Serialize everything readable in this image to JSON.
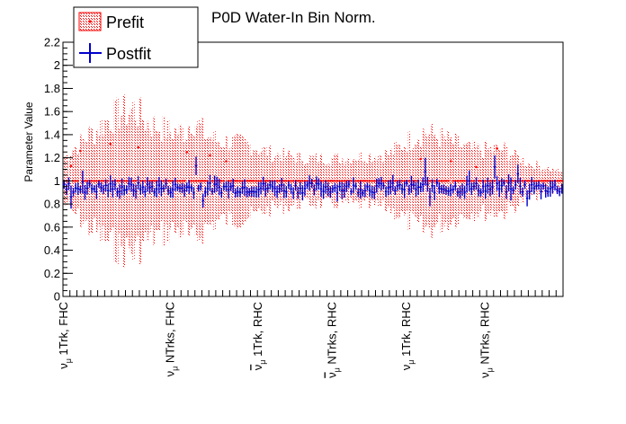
{
  "chart_data": {
    "type": "scatter",
    "title": "P0D Water-In Bin Norm.",
    "ylabel": "Parameter Value",
    "xlabel": "",
    "ylim": [
      0,
      2.2
    ],
    "yticks": [
      "0",
      "0.2",
      "0.4",
      "0.6",
      "0.8",
      "1",
      "1.2",
      "1.4",
      "1.6",
      "1.8",
      "2",
      "2.2"
    ],
    "grid": false,
    "legend_position": "top-left",
    "n_bins": 216,
    "categories": [
      {
        "label": "1Trk, FHC",
        "nu": "ν",
        "sub": "μ",
        "bar": false,
        "start_bin": 0
      },
      {
        "label": "NTrks, FHC",
        "nu": "ν",
        "sub": "μ",
        "bar": false,
        "start_bin": 46
      },
      {
        "label": "1Trk, RHC",
        "nu": "ν",
        "sub": "μ",
        "bar": true,
        "start_bin": 84
      },
      {
        "label": "NTrks, RHC",
        "nu": "ν",
        "sub": "μ",
        "bar": true,
        "start_bin": 116
      },
      {
        "label": "1Trk, RHC",
        "nu": "ν",
        "sub": "μ",
        "bar": false,
        "start_bin": 148
      },
      {
        "label": "NTrks, RHC",
        "nu": "ν",
        "sub": "μ",
        "bar": false,
        "start_bin": 182
      }
    ],
    "series": [
      {
        "name": "Prefit",
        "color": "#ff0000",
        "style": "points with hatched error band",
        "central_value": 1.0,
        "highlight_points": [
          {
            "bin": 3,
            "value": 1.13
          },
          {
            "bin": 7,
            "value": 1.26
          },
          {
            "bin": 20,
            "value": 1.32
          },
          {
            "bin": 32,
            "value": 1.29
          },
          {
            "bin": 53,
            "value": 1.25
          },
          {
            "bin": 63,
            "value": 1.22
          },
          {
            "bin": 70,
            "value": 1.17
          },
          {
            "bin": 154,
            "value": 1.19
          },
          {
            "bin": 167,
            "value": 1.17
          },
          {
            "bin": 178,
            "value": 1.12
          },
          {
            "bin": 187,
            "value": 1.28
          }
        ],
        "error_envelope": [
          {
            "bin": 0,
            "err": 0.25
          },
          {
            "bin": 10,
            "err": 0.5
          },
          {
            "bin": 13,
            "err": 0.55
          },
          {
            "bin": 20,
            "err": 0.7
          },
          {
            "bin": 30,
            "err": 0.8
          },
          {
            "bin": 36,
            "err": 0.65
          },
          {
            "bin": 46,
            "err": 0.55
          },
          {
            "bin": 53,
            "err": 0.55
          },
          {
            "bin": 55,
            "err": 0.7
          },
          {
            "bin": 62,
            "err": 0.5
          },
          {
            "bin": 66,
            "err": 0.45
          },
          {
            "bin": 80,
            "err": 0.4
          },
          {
            "bin": 90,
            "err": 0.3
          },
          {
            "bin": 105,
            "err": 0.25
          },
          {
            "bin": 120,
            "err": 0.25
          },
          {
            "bin": 140,
            "err": 0.3
          },
          {
            "bin": 155,
            "err": 0.55
          },
          {
            "bin": 166,
            "err": 0.45
          },
          {
            "bin": 175,
            "err": 0.35
          },
          {
            "bin": 190,
            "err": 0.35
          },
          {
            "bin": 200,
            "err": 0.2
          },
          {
            "bin": 215,
            "err": 0.1
          }
        ]
      },
      {
        "name": "Postfit",
        "color": "#0000ff",
        "style": "points with error bars",
        "typical_value": 0.94,
        "typical_error": 0.05,
        "highlight_points": [
          {
            "bin": 3,
            "value": 0.86,
            "err": 0.1
          },
          {
            "bin": 8,
            "value": 0.99,
            "err": 0.1
          },
          {
            "bin": 57,
            "value": 1.13,
            "err": 0.08
          },
          {
            "bin": 60,
            "value": 0.83,
            "err": 0.06
          },
          {
            "bin": 156,
            "value": 1.08,
            "err": 0.12
          },
          {
            "bin": 158,
            "value": 0.86,
            "err": 0.08
          },
          {
            "bin": 175,
            "value": 1.0,
            "err": 0.09
          },
          {
            "bin": 186,
            "value": 1.12,
            "err": 0.1
          },
          {
            "bin": 193,
            "value": 0.93,
            "err": 0.1
          },
          {
            "bin": 196,
            "value": 1.06,
            "err": 0.08
          },
          {
            "bin": 200,
            "value": 0.85,
            "err": 0.07
          }
        ]
      }
    ]
  }
}
